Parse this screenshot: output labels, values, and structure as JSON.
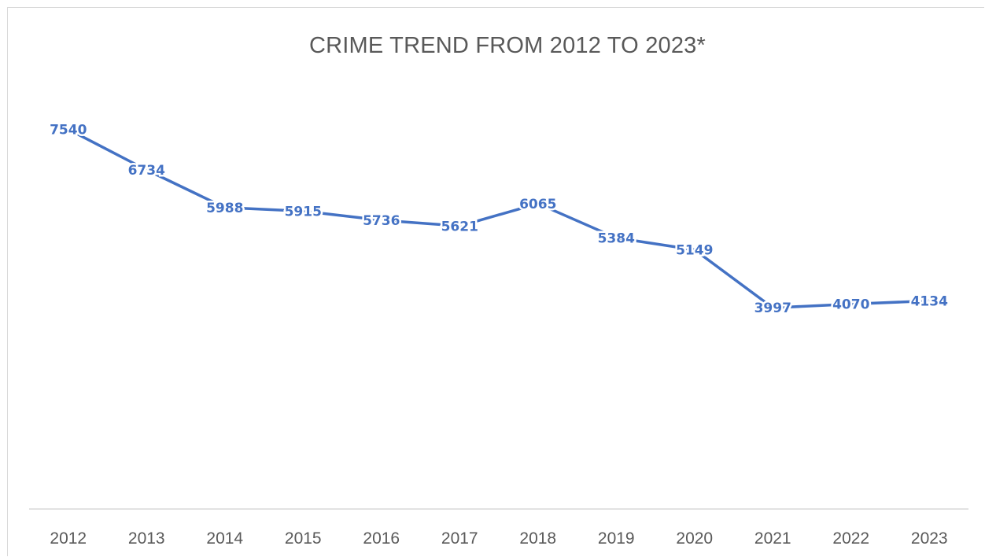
{
  "chart_data": {
    "type": "line",
    "title": "CRIME TREND FROM 2012 TO 2023*",
    "xlabel": "",
    "ylabel": "",
    "categories": [
      "2012",
      "2013",
      "2014",
      "2015",
      "2016",
      "2017",
      "2018",
      "2019",
      "2020",
      "2021",
      "2022",
      "2023"
    ],
    "series": [
      {
        "values": [
          7540,
          6734,
          5988,
          5915,
          5736,
          5621,
          6065,
          5384,
          5149,
          3997,
          4070,
          4134
        ]
      }
    ],
    "ylim": [
      0,
      10000
    ],
    "grid": false,
    "legend": "none",
    "data_labels": true,
    "line_color": "#4472c4",
    "axis_color": "#d9d9d9",
    "text_color": "#595959"
  }
}
